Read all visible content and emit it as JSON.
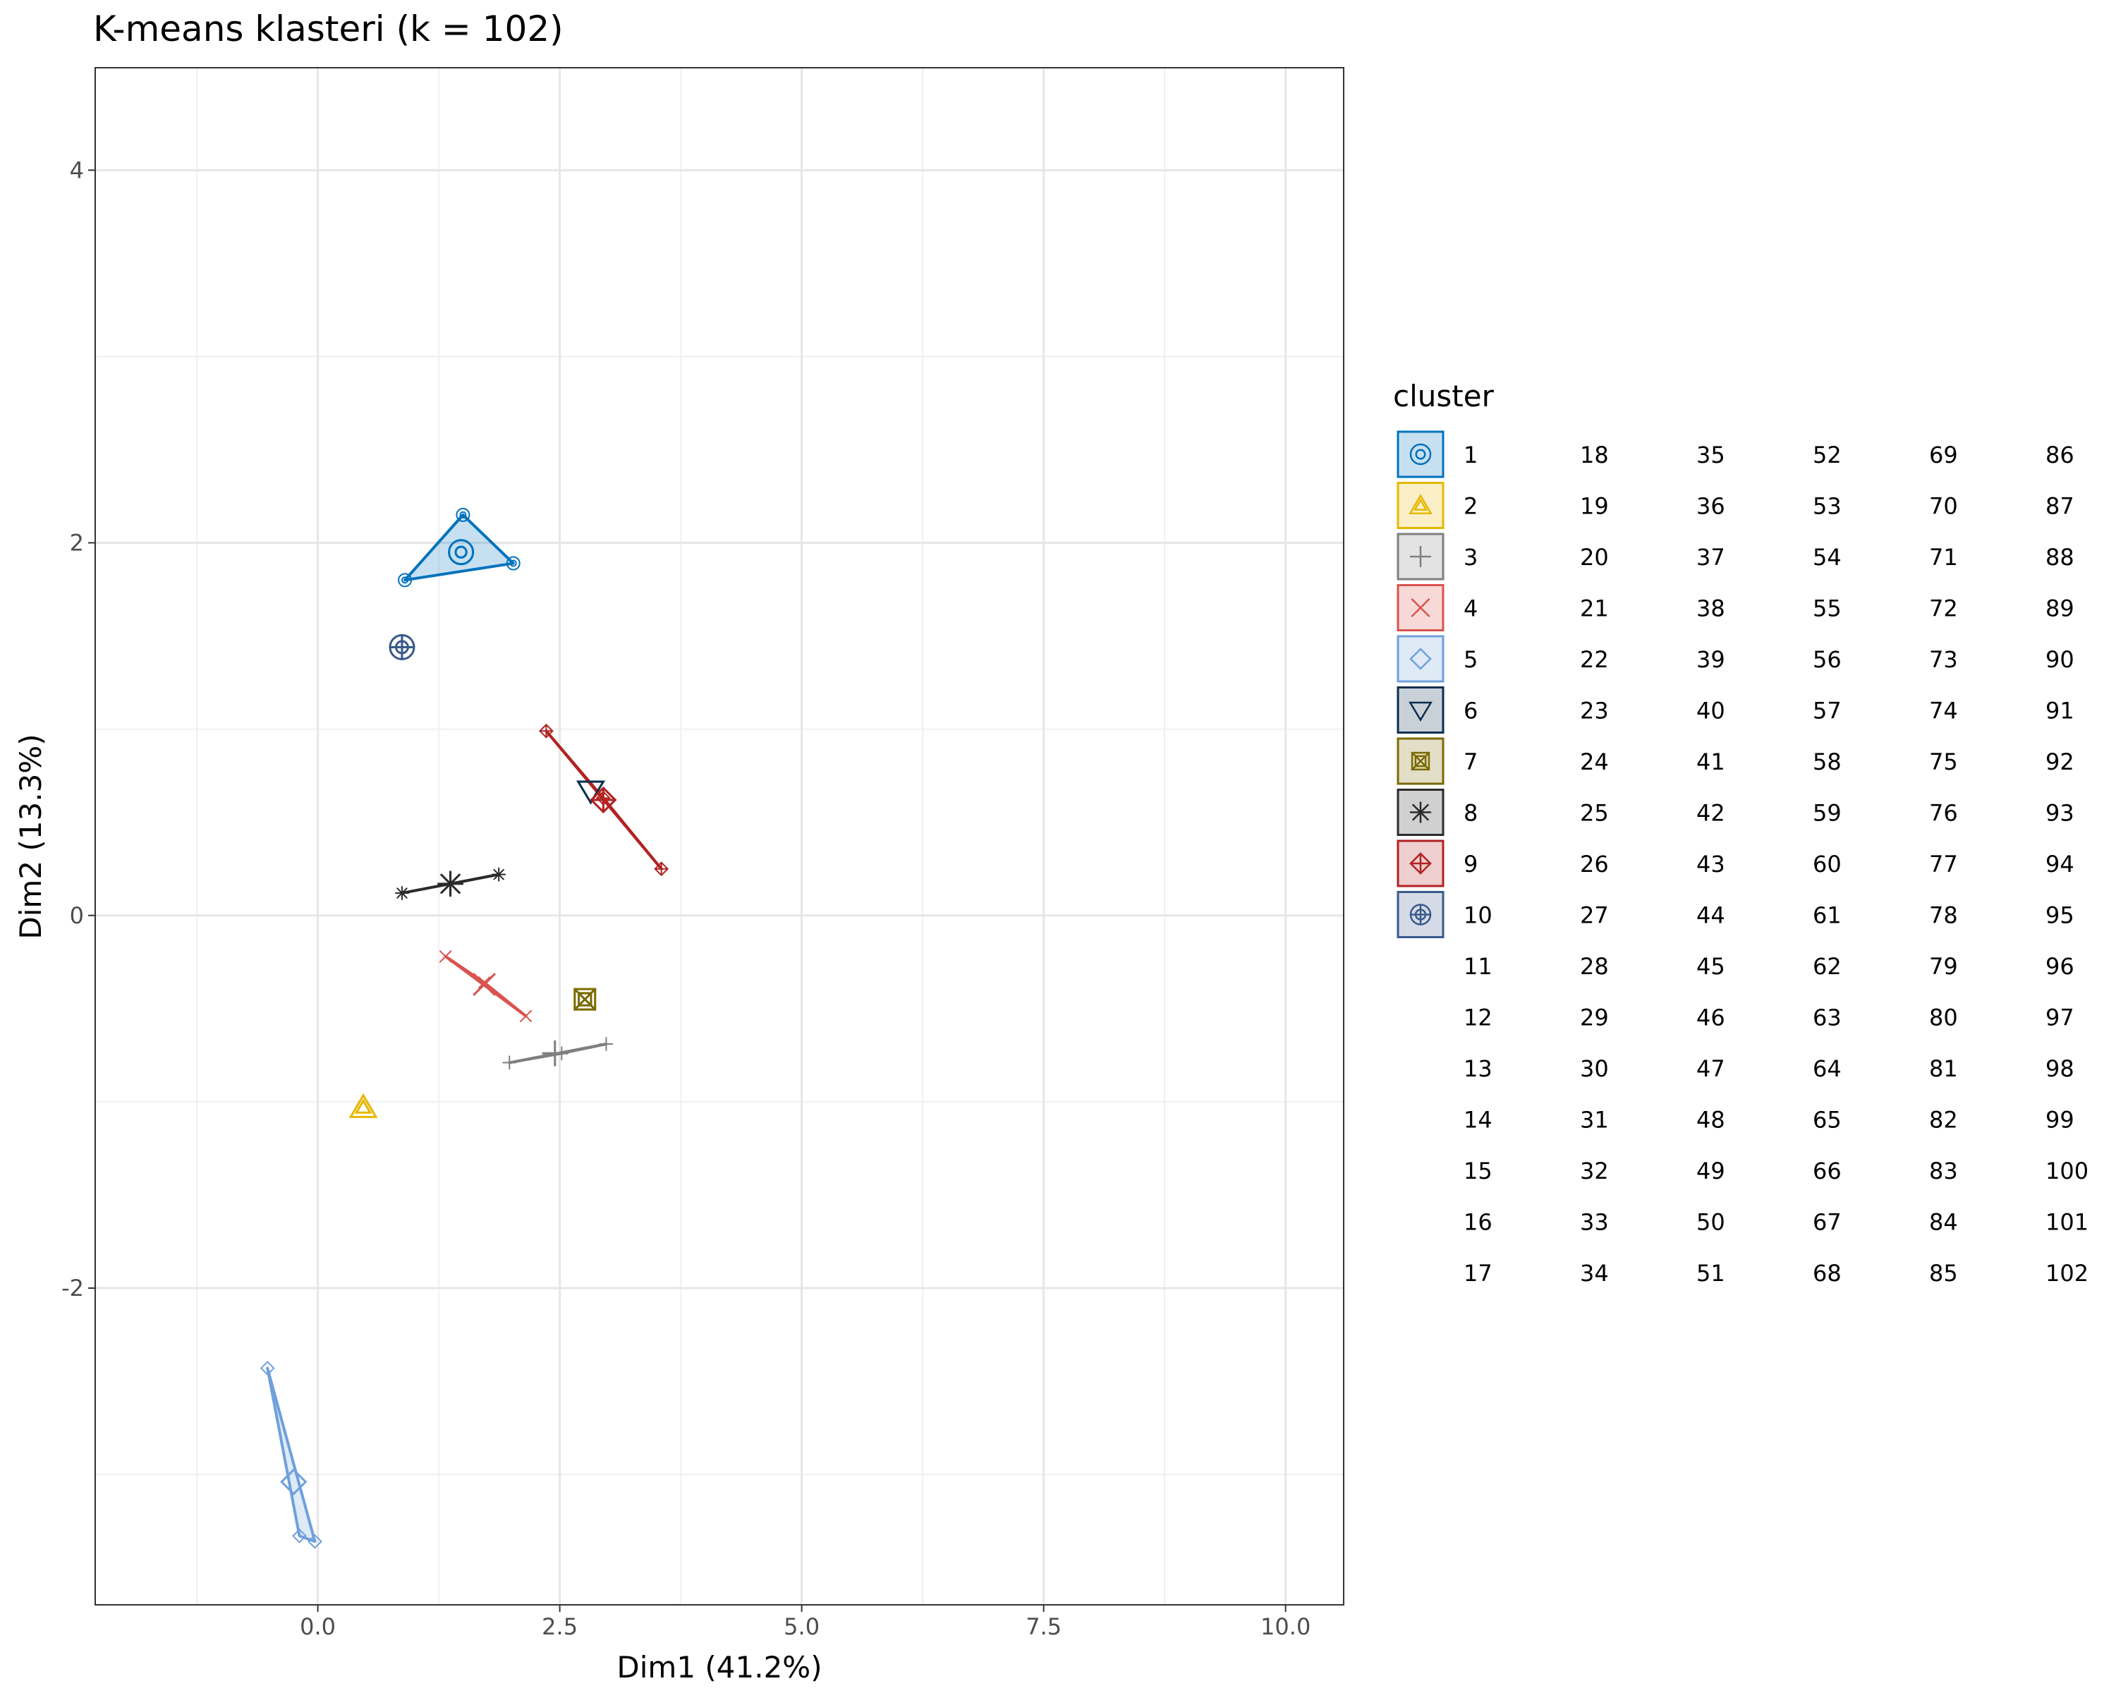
{
  "chart_data": {
    "type": "scatter",
    "title": "K-means klasteri (k = 102)",
    "xlabel": "Dim1 (41.2%)",
    "ylabel": "Dim2 (13.3%)",
    "xlim": [
      -2.3,
      10.6
    ],
    "ylim": [
      -3.7,
      4.55
    ],
    "x_ticks": [
      0,
      2.5,
      5,
      7.5,
      10
    ],
    "x_tick_labels": [
      "0.0",
      "2.5",
      "5.0",
      "7.5",
      "10.0"
    ],
    "y_ticks": [
      -2,
      0,
      2,
      4
    ],
    "y_tick_labels": [
      "-2",
      "0",
      "2",
      "4"
    ],
    "grid": true,
    "legend": {
      "title": "cluster",
      "position": "right",
      "labels": [
        "1",
        "2",
        "3",
        "4",
        "5",
        "6",
        "7",
        "8",
        "9",
        "10",
        "11",
        "12",
        "13",
        "14",
        "15",
        "16",
        "17",
        "18",
        "19",
        "20",
        "21",
        "22",
        "23",
        "24",
        "25",
        "26",
        "27",
        "28",
        "29",
        "30",
        "31",
        "32",
        "33",
        "34",
        "35",
        "36",
        "37",
        "38",
        "39",
        "40",
        "41",
        "42",
        "43",
        "44",
        "45",
        "46",
        "47",
        "48",
        "49",
        "50",
        "51",
        "52",
        "53",
        "54",
        "55",
        "56",
        "57",
        "58",
        "59",
        "60",
        "61",
        "62",
        "63",
        "64",
        "65",
        "66",
        "67",
        "68",
        "69",
        "70",
        "71",
        "72",
        "73",
        "74",
        "75",
        "76",
        "77",
        "78",
        "79",
        "80",
        "81",
        "82",
        "83",
        "84",
        "85",
        "86",
        "87",
        "88",
        "89",
        "90",
        "91",
        "92",
        "93",
        "94",
        "95",
        "96",
        "97",
        "98",
        "99",
        "100",
        "101",
        "102"
      ]
    },
    "clusters": [
      {
        "name": "1",
        "color": "#0072BD",
        "shape": "circle-in-circle",
        "points": [
          [
            0.9,
            1.8
          ],
          [
            1.5,
            2.15
          ],
          [
            2.02,
            1.89
          ]
        ],
        "center": [
          1.48,
          1.95
        ]
      },
      {
        "name": "2",
        "color": "#E6B800",
        "shape": "double-triangle",
        "points": [],
        "center": [
          0.47,
          -1.03
        ]
      },
      {
        "name": "3",
        "color": "#7F7F7F",
        "shape": "plus",
        "points": [
          [
            1.98,
            -0.79
          ],
          [
            2.52,
            -0.74
          ],
          [
            2.98,
            -0.69
          ]
        ],
        "center": [
          2.45,
          -0.74
        ]
      },
      {
        "name": "4",
        "color": "#D9534F",
        "shape": "cross",
        "points": [
          [
            1.32,
            -0.22
          ],
          [
            1.72,
            -0.36
          ],
          [
            2.15,
            -0.54
          ]
        ],
        "center": [
          1.72,
          -0.37
        ]
      },
      {
        "name": "5",
        "color": "#6FA0DC",
        "shape": "diamond",
        "points": [
          [
            -0.52,
            -2.43
          ],
          [
            -0.19,
            -3.33
          ],
          [
            -0.03,
            -3.36
          ]
        ],
        "center": [
          -0.25,
          -3.04
        ]
      },
      {
        "name": "6",
        "color": "#0B2E4F",
        "shape": "triangle-down",
        "points": [],
        "center": [
          2.82,
          0.67
        ]
      },
      {
        "name": "7",
        "color": "#7A6A00",
        "shape": "boxed-x",
        "points": [],
        "center": [
          2.76,
          -0.45
        ]
      },
      {
        "name": "8",
        "color": "#2B2B2B",
        "shape": "asterisk",
        "points": [
          [
            0.87,
            0.12
          ],
          [
            1.37,
            0.17
          ],
          [
            1.87,
            0.22
          ]
        ],
        "center": [
          1.37,
          0.17
        ]
      },
      {
        "name": "9",
        "color": "#B22222",
        "shape": "diamond-plus",
        "points": [
          [
            2.36,
            0.99
          ],
          [
            2.95,
            0.63
          ],
          [
            3.55,
            0.25
          ]
        ],
        "center": [
          2.95,
          0.62
        ]
      },
      {
        "name": "10",
        "color": "#3B5A8C",
        "shape": "circle-plus",
        "points": [],
        "center": [
          0.87,
          1.44
        ]
      }
    ]
  }
}
